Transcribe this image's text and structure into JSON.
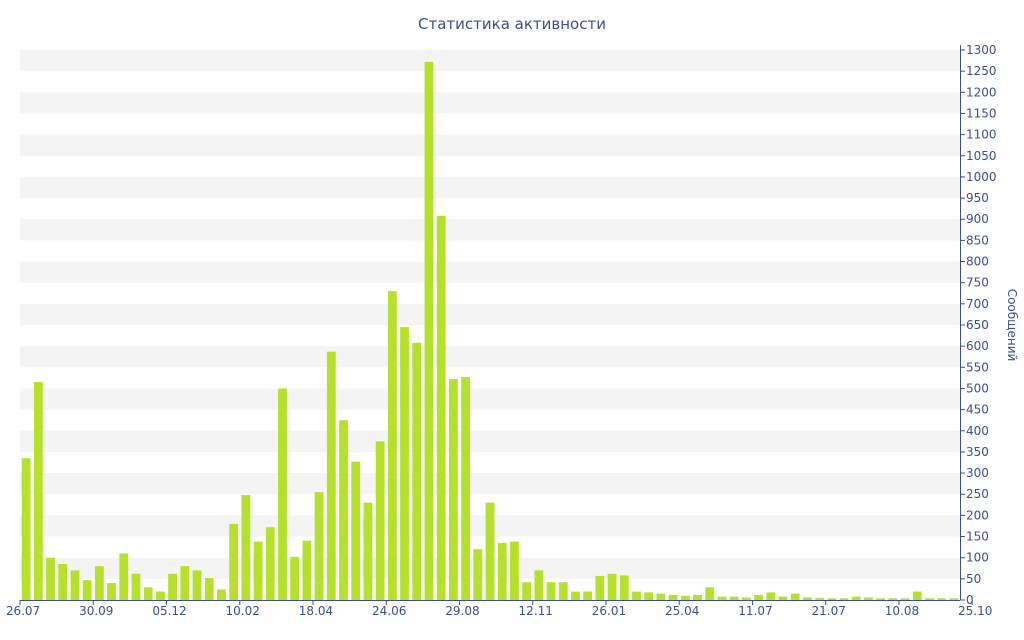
{
  "chart_data": {
    "type": "bar",
    "title": "Статистика активности",
    "ylabel": "Сообщений",
    "xlabel": "",
    "ylim": [
      0,
      1300
    ],
    "y_ticks": [
      0,
      50,
      100,
      150,
      200,
      250,
      300,
      350,
      400,
      450,
      500,
      550,
      600,
      650,
      700,
      750,
      800,
      850,
      900,
      950,
      1000,
      1050,
      1100,
      1150,
      1200,
      1250,
      1300
    ],
    "y_axis_position": "right",
    "grid": "alternating horizontal bands",
    "x_tick_labels": [
      {
        "label": "26.07",
        "index": 0
      },
      {
        "label": "30.09",
        "index": 6
      },
      {
        "label": "05.12",
        "index": 12
      },
      {
        "label": "10.02",
        "index": 18
      },
      {
        "label": "18.04",
        "index": 24
      },
      {
        "label": "24.06",
        "index": 30
      },
      {
        "label": "29.08",
        "index": 36
      },
      {
        "label": "12.11",
        "index": 42
      },
      {
        "label": "26.01",
        "index": 48
      },
      {
        "label": "25.04",
        "index": 54
      },
      {
        "label": "11.07",
        "index": 60
      },
      {
        "label": "21.07",
        "index": 66
      },
      {
        "label": "10.08",
        "index": 72
      },
      {
        "label": "25.10",
        "index": 78
      }
    ],
    "bar_color": "#b5e02c",
    "values": [
      335,
      515,
      100,
      85,
      70,
      47,
      80,
      40,
      110,
      62,
      30,
      20,
      62,
      80,
      70,
      52,
      25,
      180,
      248,
      138,
      172,
      500,
      102,
      140,
      255,
      587,
      425,
      327,
      230,
      375,
      730,
      645,
      608,
      1272,
      908,
      522,
      527,
      120,
      230,
      135,
      138,
      42,
      70,
      42,
      42,
      20,
      20,
      57,
      62,
      58,
      20,
      18,
      15,
      12,
      10,
      12,
      30,
      8,
      8,
      6,
      12,
      18,
      8,
      15,
      6,
      5,
      4,
      4,
      8,
      6,
      4,
      4,
      4,
      20,
      4,
      4,
      4
    ]
  }
}
